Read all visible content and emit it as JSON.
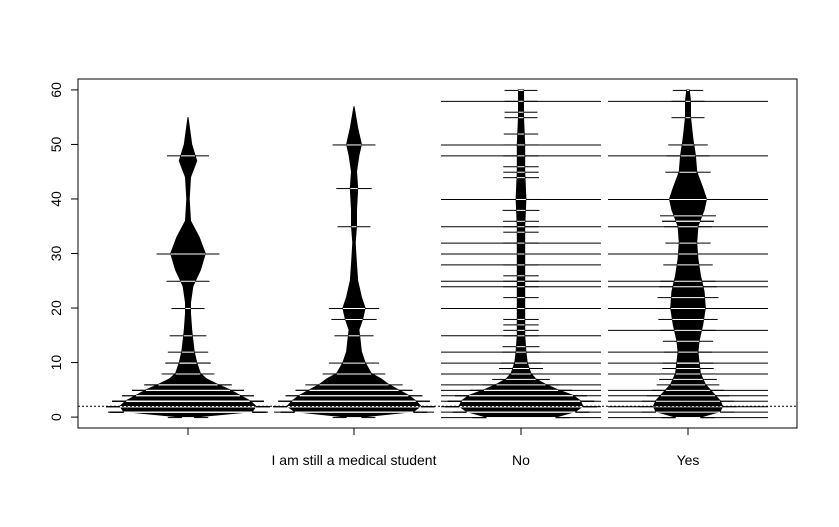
{
  "chart_data": {
    "type": "beanplot",
    "title": "",
    "xlabel": "",
    "ylabel": "",
    "categories": [
      "",
      "I am still a medical student",
      "No",
      "Yes"
    ],
    "ylim": [
      -2,
      62
    ],
    "yticks": [
      0,
      10,
      20,
      30,
      40,
      50,
      60
    ],
    "reference_line": {
      "y": 2,
      "style": "dotted"
    },
    "grid": false,
    "legend": "none",
    "colors": {
      "bean": "#000000",
      "line": "#ffffff",
      "background": "#ffffff"
    },
    "beans": [
      {
        "category": "",
        "density": [
          [
            0,
            5
          ],
          [
            1,
            52
          ],
          [
            2,
            55
          ],
          [
            3,
            50
          ],
          [
            4,
            42
          ],
          [
            5,
            34
          ],
          [
            6,
            24
          ],
          [
            7,
            15
          ],
          [
            8,
            10
          ],
          [
            10,
            7
          ],
          [
            12,
            5
          ],
          [
            14,
            4
          ],
          [
            16,
            3
          ],
          [
            19,
            2
          ],
          [
            21,
            2
          ],
          [
            24,
            4
          ],
          [
            27,
            10
          ],
          [
            30,
            14
          ],
          [
            33,
            9
          ],
          [
            36,
            2
          ],
          [
            40,
            1
          ],
          [
            44,
            2
          ],
          [
            47,
            7
          ],
          [
            50,
            3
          ],
          [
            55,
            0
          ]
        ],
        "observations": [
          0,
          1,
          1,
          1,
          1,
          1,
          1,
          2,
          2,
          2,
          2,
          3,
          3,
          3,
          3,
          4,
          4,
          5,
          5,
          6,
          6,
          8,
          10,
          10,
          12,
          15,
          20,
          25,
          30,
          30,
          30,
          48
        ],
        "long_lines": [
          1
        ]
      },
      {
        "category": "I am still a medical student",
        "density": [
          [
            0,
            6
          ],
          [
            1,
            48
          ],
          [
            2,
            54
          ],
          [
            3,
            50
          ],
          [
            4,
            44
          ],
          [
            5,
            36
          ],
          [
            6,
            28
          ],
          [
            7,
            22
          ],
          [
            8,
            14
          ],
          [
            10,
            9
          ],
          [
            12,
            6
          ],
          [
            14,
            5
          ],
          [
            16,
            4
          ],
          [
            18,
            7
          ],
          [
            20,
            9
          ],
          [
            22,
            6
          ],
          [
            25,
            3
          ],
          [
            28,
            2
          ],
          [
            32,
            1
          ],
          [
            35,
            2
          ],
          [
            38,
            2
          ],
          [
            42,
            3
          ],
          [
            45,
            2
          ],
          [
            48,
            4
          ],
          [
            50,
            6
          ],
          [
            53,
            3
          ],
          [
            57,
            0
          ]
        ],
        "observations": [
          0,
          1,
          1,
          1,
          1,
          2,
          2,
          2,
          2,
          3,
          3,
          3,
          4,
          4,
          5,
          5,
          6,
          8,
          10,
          15,
          18,
          20,
          35,
          42,
          50
        ],
        "long_lines": [
          1
        ]
      },
      {
        "category": "No",
        "density": [
          [
            0,
            28
          ],
          [
            1,
            44
          ],
          [
            2,
            50
          ],
          [
            3,
            48
          ],
          [
            4,
            42
          ],
          [
            5,
            30
          ],
          [
            6,
            20
          ],
          [
            7,
            12
          ],
          [
            8,
            8
          ],
          [
            10,
            5
          ],
          [
            12,
            4
          ],
          [
            15,
            3
          ],
          [
            20,
            3
          ],
          [
            25,
            3
          ],
          [
            30,
            3
          ],
          [
            35,
            3
          ],
          [
            40,
            4
          ],
          [
            45,
            3
          ],
          [
            50,
            3
          ],
          [
            55,
            2
          ],
          [
            60,
            2
          ]
        ],
        "observations": [
          0,
          0,
          1,
          1,
          1,
          2,
          2,
          2,
          3,
          3,
          3,
          4,
          4,
          5,
          5,
          6,
          7,
          8,
          9,
          10,
          10,
          12,
          13,
          15,
          16,
          17,
          18,
          20,
          22,
          24,
          25,
          26,
          28,
          30,
          32,
          34,
          35,
          36,
          38,
          40,
          44,
          45,
          46,
          48,
          50,
          52,
          55,
          56,
          58,
          60
        ],
        "long_lines": [
          0,
          1,
          2,
          3,
          4,
          5,
          6,
          8,
          10,
          12,
          15,
          20,
          24,
          25,
          28,
          30,
          32,
          35,
          40,
          48,
          50,
          58
        ]
      },
      {
        "category": "Yes",
        "density": [
          [
            0,
            10
          ],
          [
            1,
            26
          ],
          [
            2,
            28
          ],
          [
            3,
            26
          ],
          [
            4,
            22
          ],
          [
            5,
            18
          ],
          [
            6,
            14
          ],
          [
            8,
            10
          ],
          [
            10,
            9
          ],
          [
            12,
            8
          ],
          [
            14,
            9
          ],
          [
            17,
            12
          ],
          [
            20,
            14
          ],
          [
            23,
            13
          ],
          [
            26,
            10
          ],
          [
            29,
            8
          ],
          [
            32,
            7
          ],
          [
            35,
            8
          ],
          [
            38,
            13
          ],
          [
            40,
            15
          ],
          [
            42,
            12
          ],
          [
            45,
            7
          ],
          [
            48,
            6
          ],
          [
            51,
            4
          ],
          [
            55,
            2
          ],
          [
            58,
            2
          ],
          [
            60,
            1
          ]
        ],
        "observations": [
          0,
          0,
          1,
          2,
          3,
          4,
          5,
          6,
          7,
          8,
          9,
          10,
          10,
          10,
          12,
          14,
          16,
          18,
          20,
          22,
          24,
          25,
          28,
          30,
          32,
          35,
          36,
          36,
          37,
          40,
          45,
          48,
          50,
          55,
          58,
          60
        ],
        "long_lines": [
          0,
          1,
          2,
          3,
          4,
          5,
          8,
          10,
          12,
          16,
          20,
          24,
          25,
          30,
          35,
          40,
          48,
          58
        ]
      }
    ]
  }
}
